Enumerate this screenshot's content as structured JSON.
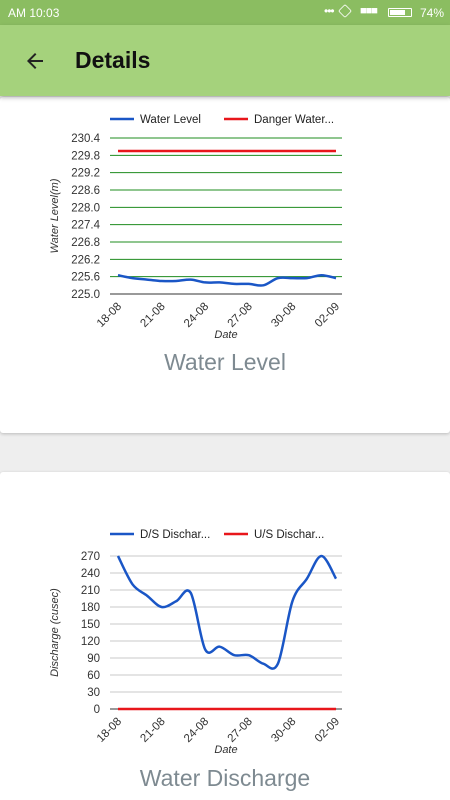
{
  "status_bar": {
    "time": "AM 10:03",
    "dots": "•••",
    "signal": "■■■",
    "battery_percent": "74%",
    "battery_level": 0.74
  },
  "app_bar": {
    "title": "Details",
    "back_icon": "arrow-back-icon"
  },
  "colors": {
    "status_bar": "#8bbd61",
    "app_bar": "#a5d27c",
    "series_blue": "#1a56c6",
    "series_red": "#e8161b",
    "grid_green": "#1f8c1f",
    "grid_gray": "#c9c9c9",
    "title_gray": "#7e8a91"
  },
  "chart_data": [
    {
      "type": "line",
      "title": "Water Level",
      "xlabel": "Date",
      "ylabel": "Water Level(m)",
      "ylim": [
        225.0,
        230.4
      ],
      "yticks": [
        "225.0",
        "225.6",
        "226.2",
        "226.8",
        "227.4",
        "228.0",
        "228.6",
        "229.2",
        "229.8",
        "230.4"
      ],
      "xticks": [
        "18-08",
        "21-08",
        "24-08",
        "27-08",
        "30-08",
        "02-09"
      ],
      "x": [
        "18-08",
        "19-08",
        "20-08",
        "21-08",
        "22-08",
        "23-08",
        "24-08",
        "25-08",
        "26-08",
        "27-08",
        "28-08",
        "29-08",
        "30-08",
        "31-08",
        "01-09",
        "02-09"
      ],
      "grid": "horizontal",
      "legend_position": "top",
      "series": [
        {
          "name": "Water Level",
          "color": "#1a56c6",
          "values": [
            225.65,
            225.55,
            225.5,
            225.45,
            225.45,
            225.5,
            225.4,
            225.4,
            225.35,
            225.35,
            225.3,
            225.55,
            225.55,
            225.55,
            225.65,
            225.55
          ]
        },
        {
          "name": "Danger Water...",
          "color": "#e8161b",
          "values": [
            229.95,
            229.95,
            229.95,
            229.95,
            229.95,
            229.95,
            229.95,
            229.95,
            229.95,
            229.95,
            229.95,
            229.95,
            229.95,
            229.95,
            229.95,
            229.95
          ]
        }
      ]
    },
    {
      "type": "line",
      "title": "Water Discharge",
      "xlabel": "Date",
      "ylabel": "Discharge (cusec)",
      "ylim": [
        0,
        270
      ],
      "yticks": [
        "0",
        "30",
        "60",
        "90",
        "120",
        "150",
        "180",
        "210",
        "240",
        "270"
      ],
      "xticks": [
        "18-08",
        "21-08",
        "24-08",
        "27-08",
        "30-08",
        "02-09"
      ],
      "x": [
        "18-08",
        "19-08",
        "20-08",
        "21-08",
        "22-08",
        "23-08",
        "24-08",
        "25-08",
        "26-08",
        "27-08",
        "28-08",
        "29-08",
        "30-08",
        "31-08",
        "01-09",
        "02-09"
      ],
      "grid": "horizontal",
      "legend_position": "top",
      "series": [
        {
          "name": "D/S Dischar...",
          "color": "#1a56c6",
          "values": [
            270,
            220,
            200,
            180,
            190,
            205,
            105,
            110,
            95,
            95,
            80,
            80,
            190,
            230,
            270,
            230
          ]
        },
        {
          "name": "U/S Dischar...",
          "color": "#e8161b",
          "values": [
            0,
            0,
            0,
            0,
            0,
            0,
            0,
            0,
            0,
            0,
            0,
            0,
            0,
            0,
            0,
            0
          ]
        }
      ]
    }
  ]
}
